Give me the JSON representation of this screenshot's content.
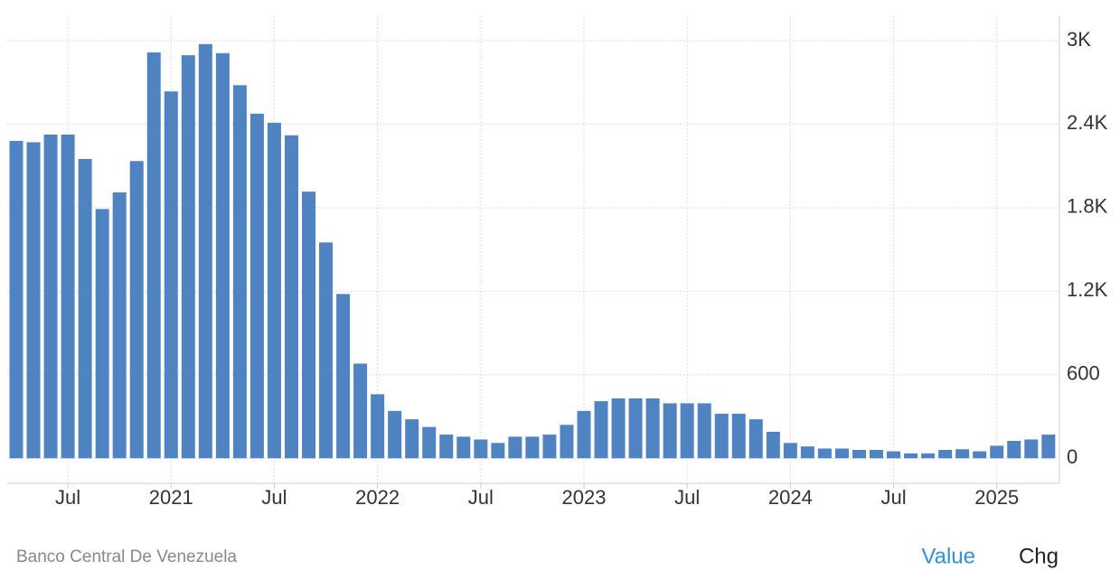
{
  "chart_data": {
    "type": "bar",
    "categories": [
      null,
      null,
      null,
      "Jul",
      null,
      null,
      null,
      null,
      null,
      "2021",
      null,
      null,
      null,
      null,
      null,
      "Jul",
      null,
      null,
      null,
      null,
      null,
      "2022",
      null,
      null,
      null,
      null,
      null,
      "Jul",
      null,
      null,
      null,
      null,
      null,
      "2023",
      null,
      null,
      null,
      null,
      null,
      "Jul",
      null,
      null,
      null,
      null,
      null,
      "2024",
      null,
      null,
      null,
      null,
      null,
      "Jul",
      null,
      null,
      null,
      null,
      null,
      "2025",
      null,
      null,
      null
    ],
    "values": [
      2280,
      2270,
      2325,
      2325,
      2150,
      1790,
      1910,
      2135,
      2915,
      2635,
      2895,
      2975,
      2910,
      2680,
      2475,
      2410,
      2320,
      1915,
      1550,
      1180,
      680,
      460,
      340,
      280,
      225,
      170,
      155,
      135,
      110,
      155,
      155,
      170,
      240,
      340,
      410,
      430,
      430,
      430,
      395,
      395,
      395,
      320,
      320,
      280,
      190,
      110,
      85,
      70,
      70,
      60,
      60,
      50,
      35,
      35,
      60,
      65,
      50,
      90,
      125,
      135,
      170
    ],
    "color": "#5083c1",
    "ylim": [
      -180,
      3175
    ],
    "yticks": [
      0,
      600,
      {
        "value": 1200,
        "label": "1.2K"
      },
      {
        "value": 1800,
        "label": "1.8K"
      },
      {
        "value": 2400,
        "label": "2.4K"
      },
      {
        "value": 3000,
        "label": "3K"
      }
    ],
    "grid": true
  },
  "footer": {
    "source": "Banco Central De Venezuela",
    "buttons": [
      "Value",
      "Chg"
    ]
  }
}
